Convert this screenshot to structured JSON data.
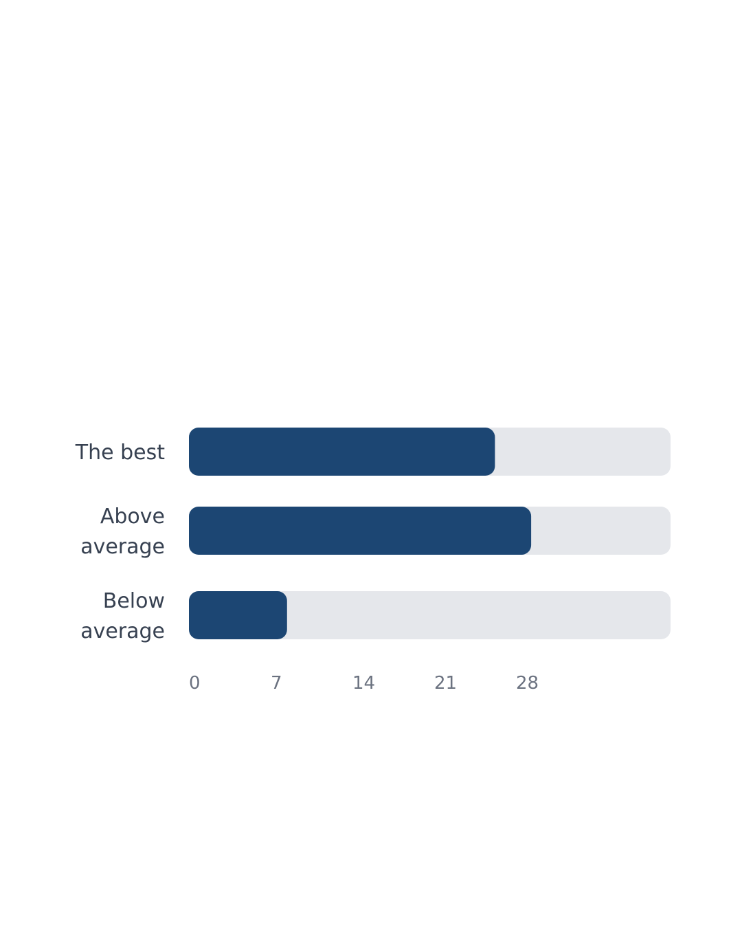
{
  "chart_data": {
    "type": "bar",
    "orientation": "horizontal",
    "categories": [
      [
        "The best"
      ],
      [
        "Above",
        "average"
      ],
      [
        "Below",
        "average"
      ]
    ],
    "values": [
      26.2,
      29.3,
      8.4
    ],
    "xlim": [
      0,
      42
    ],
    "xticks": [
      0,
      7,
      14,
      21,
      28
    ],
    "grid": false,
    "legend": "none",
    "colors": {
      "bar": "#1c4673",
      "track": "#e5e7eb",
      "label": "#374151",
      "tick": "#6b7280"
    }
  }
}
